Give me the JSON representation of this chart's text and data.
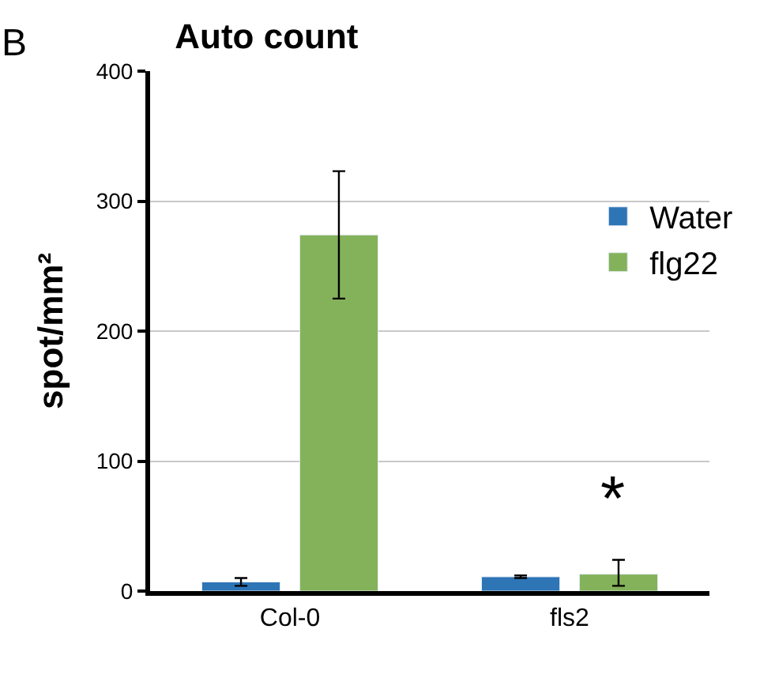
{
  "chart_data": {
    "type": "bar",
    "title": "Auto count",
    "ylabel": "spot/mm²",
    "categories": [
      "Col-0",
      "fls2"
    ],
    "series": [
      {
        "name": "Water",
        "color": "#2e75b6",
        "values": [
          7,
          11
        ],
        "errors": [
          3,
          1
        ]
      },
      {
        "name": "flg22",
        "color": "#84b25a",
        "values": [
          274,
          13
        ],
        "errors": [
          [
            225,
            323
          ],
          [
            4,
            24
          ]
        ]
      }
    ],
    "ylim": [
      0,
      400
    ],
    "yticks": [
      0,
      100,
      200,
      300,
      400
    ],
    "grid": "y",
    "legend": "right",
    "annotations": [
      "B",
      "*"
    ]
  }
}
